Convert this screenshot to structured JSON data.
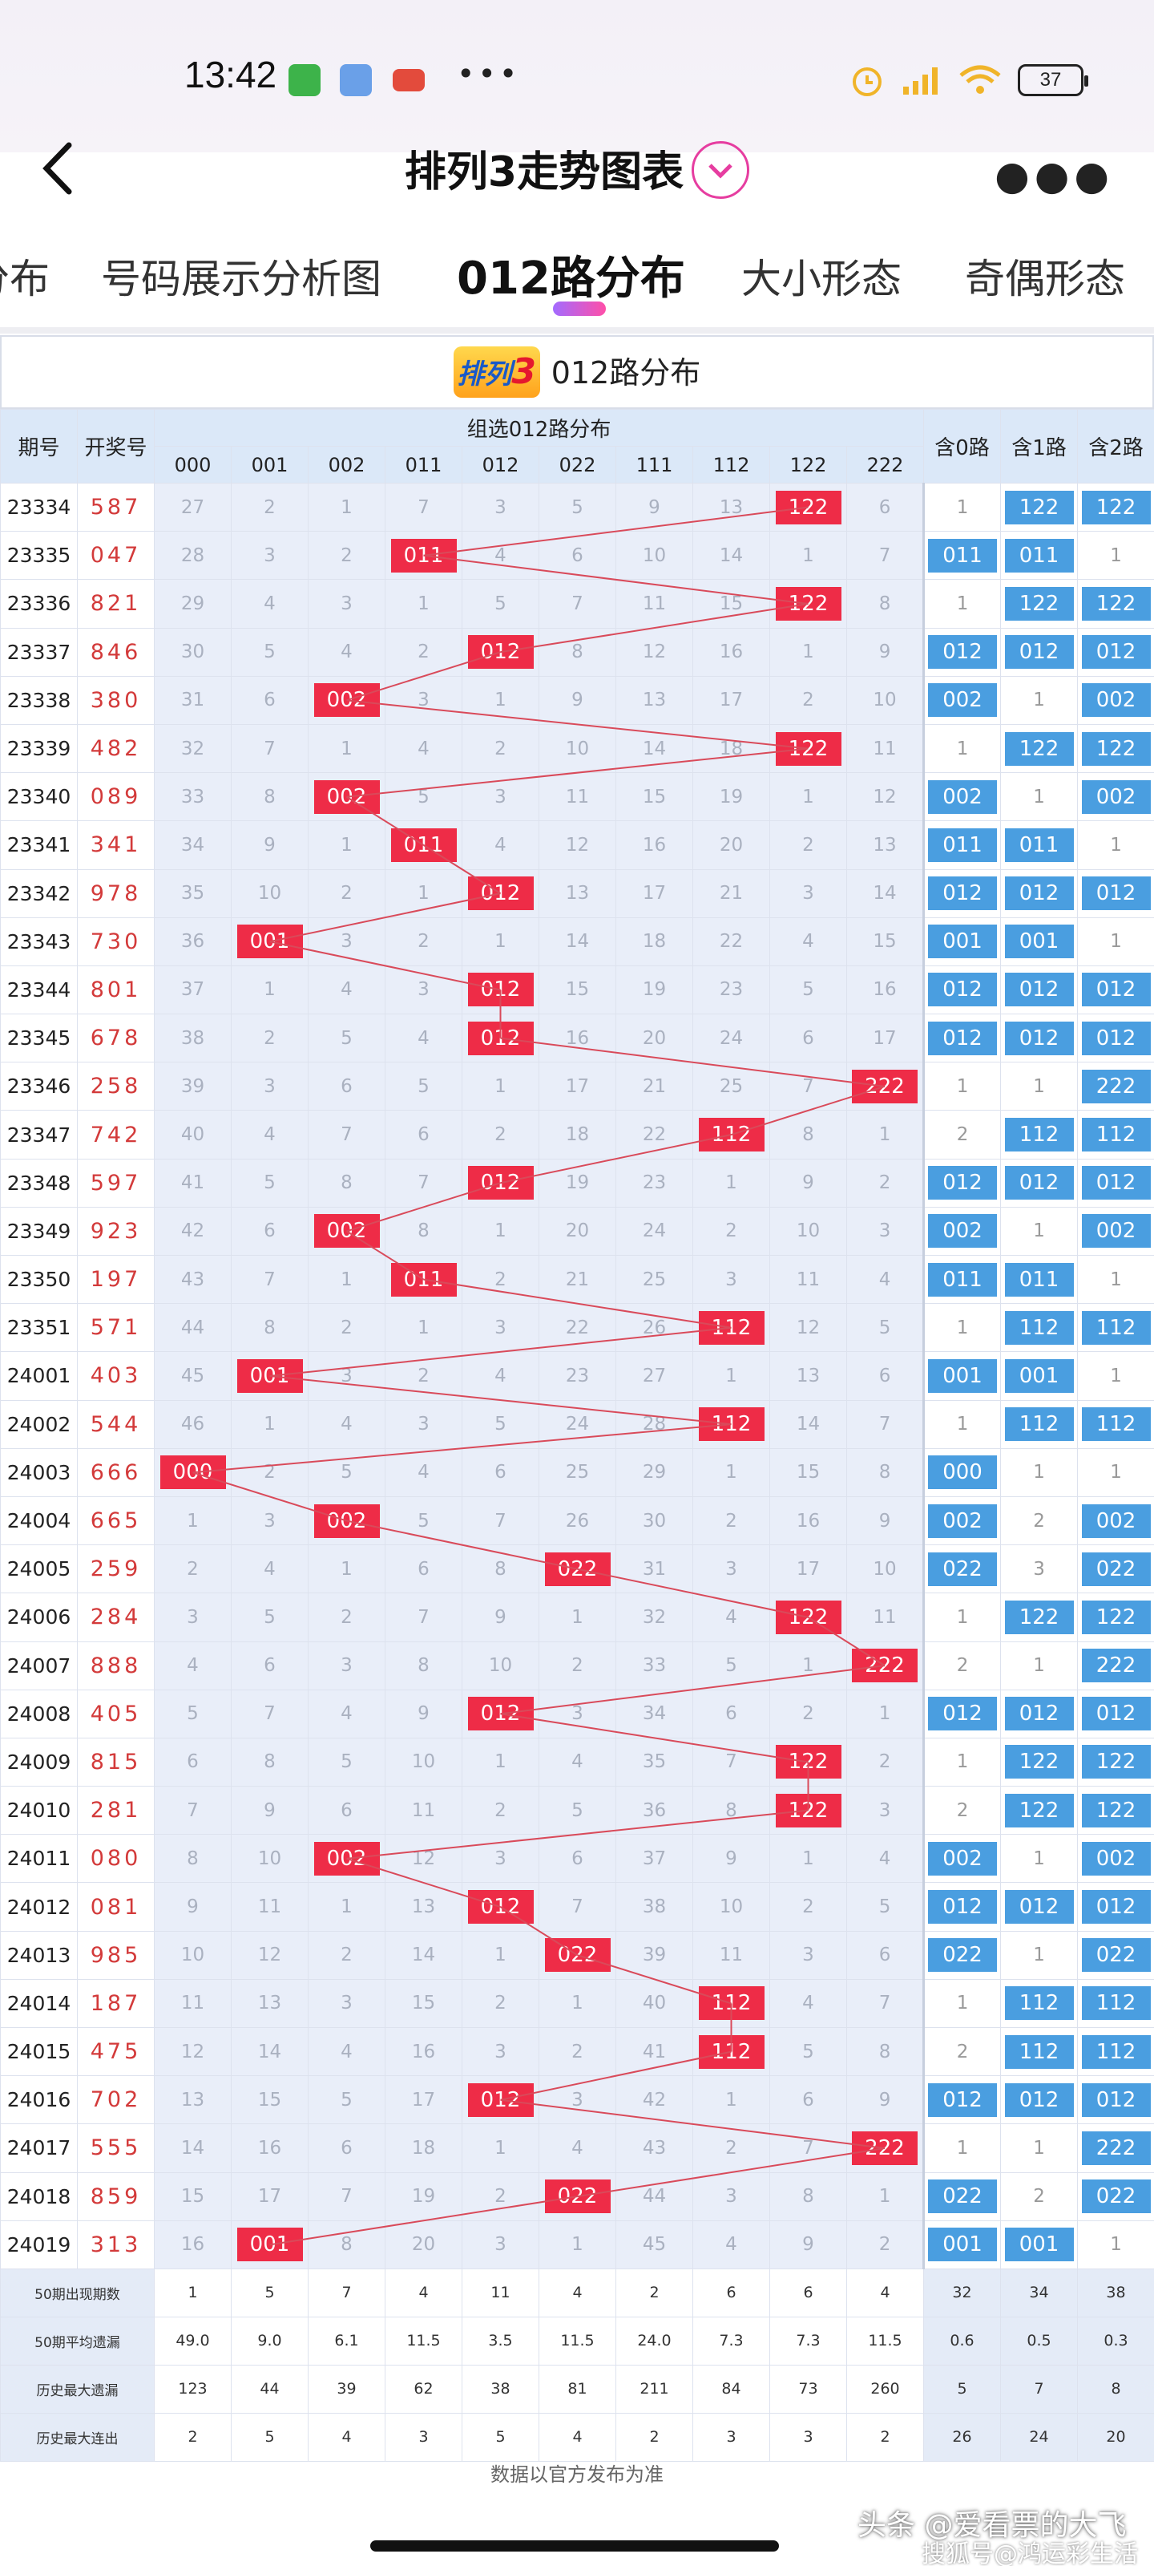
{
  "status": {
    "time": "13:42",
    "battery": "37"
  },
  "header": {
    "title": "排列3走势图表"
  },
  "tabs": [
    "分布",
    "号码展示分析图",
    "012路分布",
    "大小形态",
    "奇偶形态"
  ],
  "table": {
    "caption": "012路分布",
    "logo_text": "排列",
    "logo_num": "3",
    "headers": {
      "period": "期号",
      "draw": "开奖号",
      "group": "组选012路分布",
      "combos": [
        "000",
        "001",
        "002",
        "011",
        "012",
        "022",
        "111",
        "112",
        "122",
        "222"
      ],
      "contains": [
        "含0路",
        "含1路",
        "含2路"
      ]
    },
    "rows": [
      {
        "p": "23334",
        "k": "587",
        "v": [
          27,
          2,
          1,
          7,
          3,
          5,
          9,
          13,
          "122",
          6
        ],
        "c": [
          1,
          "122",
          "122"
        ]
      },
      {
        "p": "23335",
        "k": "047",
        "v": [
          28,
          3,
          2,
          "011",
          4,
          6,
          10,
          14,
          1,
          7
        ],
        "c": [
          "011",
          "011",
          1
        ]
      },
      {
        "p": "23336",
        "k": "821",
        "v": [
          29,
          4,
          3,
          1,
          5,
          7,
          11,
          15,
          "122",
          8
        ],
        "c": [
          1,
          "122",
          "122"
        ]
      },
      {
        "p": "23337",
        "k": "846",
        "v": [
          30,
          5,
          4,
          2,
          "012",
          8,
          12,
          16,
          1,
          9
        ],
        "c": [
          "012",
          "012",
          "012"
        ]
      },
      {
        "p": "23338",
        "k": "380",
        "v": [
          31,
          6,
          "002",
          3,
          1,
          9,
          13,
          17,
          2,
          10
        ],
        "c": [
          "002",
          1,
          "002"
        ]
      },
      {
        "p": "23339",
        "k": "482",
        "v": [
          32,
          7,
          1,
          4,
          2,
          10,
          14,
          18,
          "122",
          11
        ],
        "c": [
          1,
          "122",
          "122"
        ]
      },
      {
        "p": "23340",
        "k": "089",
        "v": [
          33,
          8,
          "002",
          5,
          3,
          11,
          15,
          19,
          1,
          12
        ],
        "c": [
          "002",
          1,
          "002"
        ]
      },
      {
        "p": "23341",
        "k": "341",
        "v": [
          34,
          9,
          1,
          "011",
          4,
          12,
          16,
          20,
          2,
          13
        ],
        "c": [
          "011",
          "011",
          1
        ]
      },
      {
        "p": "23342",
        "k": "978",
        "v": [
          35,
          10,
          2,
          1,
          "012",
          13,
          17,
          21,
          3,
          14
        ],
        "c": [
          "012",
          "012",
          "012"
        ]
      },
      {
        "p": "23343",
        "k": "730",
        "v": [
          36,
          "001",
          3,
          2,
          1,
          14,
          18,
          22,
          4,
          15
        ],
        "c": [
          "001",
          "001",
          1
        ]
      },
      {
        "p": "23344",
        "k": "801",
        "v": [
          37,
          1,
          4,
          3,
          "012",
          15,
          19,
          23,
          5,
          16
        ],
        "c": [
          "012",
          "012",
          "012"
        ]
      },
      {
        "p": "23345",
        "k": "678",
        "v": [
          38,
          2,
          5,
          4,
          "012",
          16,
          20,
          24,
          6,
          17
        ],
        "c": [
          "012",
          "012",
          "012"
        ]
      },
      {
        "p": "23346",
        "k": "258",
        "v": [
          39,
          3,
          6,
          5,
          1,
          17,
          21,
          25,
          7,
          "222"
        ],
        "c": [
          1,
          1,
          "222"
        ]
      },
      {
        "p": "23347",
        "k": "742",
        "v": [
          40,
          4,
          7,
          6,
          2,
          18,
          22,
          "112",
          8,
          1
        ],
        "c": [
          2,
          "112",
          "112"
        ]
      },
      {
        "p": "23348",
        "k": "597",
        "v": [
          41,
          5,
          8,
          7,
          "012",
          19,
          23,
          1,
          9,
          2
        ],
        "c": [
          "012",
          "012",
          "012"
        ]
      },
      {
        "p": "23349",
        "k": "923",
        "v": [
          42,
          6,
          "002",
          8,
          1,
          20,
          24,
          2,
          10,
          3
        ],
        "c": [
          "002",
          1,
          "002"
        ]
      },
      {
        "p": "23350",
        "k": "197",
        "v": [
          43,
          7,
          1,
          "011",
          2,
          21,
          25,
          3,
          11,
          4
        ],
        "c": [
          "011",
          "011",
          1
        ]
      },
      {
        "p": "23351",
        "k": "571",
        "v": [
          44,
          8,
          2,
          1,
          3,
          22,
          26,
          "112",
          12,
          5
        ],
        "c": [
          1,
          "112",
          "112"
        ]
      },
      {
        "p": "24001",
        "k": "403",
        "v": [
          45,
          "001",
          3,
          2,
          4,
          23,
          27,
          1,
          13,
          6
        ],
        "c": [
          "001",
          "001",
          1
        ]
      },
      {
        "p": "24002",
        "k": "544",
        "v": [
          46,
          1,
          4,
          3,
          5,
          24,
          28,
          "112",
          14,
          7
        ],
        "c": [
          1,
          "112",
          "112"
        ]
      },
      {
        "p": "24003",
        "k": "666",
        "v": [
          "000",
          2,
          5,
          4,
          6,
          25,
          29,
          1,
          15,
          8
        ],
        "c": [
          "000",
          1,
          1
        ]
      },
      {
        "p": "24004",
        "k": "665",
        "v": [
          1,
          3,
          "002",
          5,
          7,
          26,
          30,
          2,
          16,
          9
        ],
        "c": [
          "002",
          2,
          "002"
        ]
      },
      {
        "p": "24005",
        "k": "259",
        "v": [
          2,
          4,
          1,
          6,
          8,
          "022",
          31,
          3,
          17,
          10
        ],
        "c": [
          "022",
          3,
          "022"
        ]
      },
      {
        "p": "24006",
        "k": "284",
        "v": [
          3,
          5,
          2,
          7,
          9,
          1,
          32,
          4,
          "122",
          11
        ],
        "c": [
          1,
          "122",
          "122"
        ]
      },
      {
        "p": "24007",
        "k": "888",
        "v": [
          4,
          6,
          3,
          8,
          10,
          2,
          33,
          5,
          1,
          "222"
        ],
        "c": [
          2,
          1,
          "222"
        ]
      },
      {
        "p": "24008",
        "k": "405",
        "v": [
          5,
          7,
          4,
          9,
          "012",
          3,
          34,
          6,
          2,
          1
        ],
        "c": [
          "012",
          "012",
          "012"
        ]
      },
      {
        "p": "24009",
        "k": "815",
        "v": [
          6,
          8,
          5,
          10,
          1,
          4,
          35,
          7,
          "122",
          2
        ],
        "c": [
          1,
          "122",
          "122"
        ]
      },
      {
        "p": "24010",
        "k": "281",
        "v": [
          7,
          9,
          6,
          11,
          2,
          5,
          36,
          8,
          "122",
          3
        ],
        "c": [
          2,
          "122",
          "122"
        ]
      },
      {
        "p": "24011",
        "k": "080",
        "v": [
          8,
          10,
          "002",
          12,
          3,
          6,
          37,
          9,
          1,
          4
        ],
        "c": [
          "002",
          1,
          "002"
        ]
      },
      {
        "p": "24012",
        "k": "081",
        "v": [
          9,
          11,
          1,
          13,
          "012",
          7,
          38,
          10,
          2,
          5
        ],
        "c": [
          "012",
          "012",
          "012"
        ]
      },
      {
        "p": "24013",
        "k": "985",
        "v": [
          10,
          12,
          2,
          14,
          1,
          "022",
          39,
          11,
          3,
          6
        ],
        "c": [
          "022",
          1,
          "022"
        ]
      },
      {
        "p": "24014",
        "k": "187",
        "v": [
          11,
          13,
          3,
          15,
          2,
          1,
          40,
          "112",
          4,
          7
        ],
        "c": [
          1,
          "112",
          "112"
        ]
      },
      {
        "p": "24015",
        "k": "475",
        "v": [
          12,
          14,
          4,
          16,
          3,
          2,
          41,
          "112",
          5,
          8
        ],
        "c": [
          2,
          "112",
          "112"
        ]
      },
      {
        "p": "24016",
        "k": "702",
        "v": [
          13,
          15,
          5,
          17,
          "012",
          3,
          42,
          1,
          6,
          9
        ],
        "c": [
          "012",
          "012",
          "012"
        ]
      },
      {
        "p": "24017",
        "k": "555",
        "v": [
          14,
          16,
          6,
          18,
          1,
          4,
          43,
          2,
          7,
          "222"
        ],
        "c": [
          1,
          1,
          "222"
        ]
      },
      {
        "p": "24018",
        "k": "859",
        "v": [
          15,
          17,
          7,
          19,
          2,
          "022",
          44,
          3,
          8,
          1
        ],
        "c": [
          "022",
          2,
          "022"
        ]
      },
      {
        "p": "24019",
        "k": "313",
        "v": [
          16,
          "001",
          8,
          20,
          3,
          1,
          45,
          4,
          9,
          2
        ],
        "c": [
          "001",
          "001",
          1
        ]
      }
    ],
    "footer": [
      {
        "label": "50期出现期数",
        "v": [
          "1",
          "5",
          "7",
          "4",
          "11",
          "4",
          "2",
          "6",
          "6",
          "4"
        ],
        "c": [
          "32",
          "34",
          "38"
        ]
      },
      {
        "label": "50期平均遗漏",
        "v": [
          "49.0",
          "9.0",
          "6.1",
          "11.5",
          "3.5",
          "11.5",
          "24.0",
          "7.3",
          "7.3",
          "11.5"
        ],
        "c": [
          "0.6",
          "0.5",
          "0.3"
        ]
      },
      {
        "label": "历史最大遗漏",
        "v": [
          "123",
          "44",
          "39",
          "62",
          "38",
          "81",
          "211",
          "84",
          "73",
          "260"
        ],
        "c": [
          "5",
          "7",
          "8"
        ]
      },
      {
        "label": "历史最大连出",
        "v": [
          "2",
          "5",
          "4",
          "3",
          "5",
          "4",
          "2",
          "3",
          "3",
          "2"
        ],
        "c": [
          "26",
          "24",
          "20"
        ]
      }
    ],
    "note": "数据以官方发布为准"
  },
  "watermark": {
    "line1": "头条 @爱看票的大飞",
    "line2": "搜狐号@鸿运彩生活"
  },
  "colors": {
    "hit": "#ee2c47",
    "contains": "#4a9ee0",
    "line": "#d94a5a"
  }
}
